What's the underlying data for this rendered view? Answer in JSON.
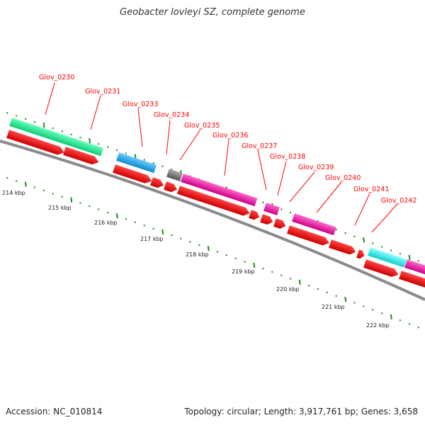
{
  "header": {
    "title": "Geobacter lovleyi SZ, complete genome"
  },
  "footer": {
    "accession": "Accession: NC_010814",
    "summary": "Topology: circular; Length: 3,917,761 bp; Genes: 3,658"
  },
  "scale_ticks": [
    "214 kbp",
    "215 kbp",
    "216 kbp",
    "217 kbp",
    "218 kbp",
    "219 kbp",
    "220 kbp",
    "221 kbp",
    "222 kbp"
  ],
  "genes": [
    {
      "id": "Glov_0230",
      "color": "#22ee99"
    },
    {
      "id": "Glov_0231",
      "color": "#22ee99"
    },
    {
      "id": "Glov_0233",
      "color": "#22aaee"
    },
    {
      "id": "Glov_0234",
      "color": "#777777"
    },
    {
      "id": "Glov_0235",
      "color": "#ee1199"
    },
    {
      "id": "Glov_0236",
      "color": "#ee1199"
    },
    {
      "id": "Glov_0237",
      "color": "#ee1199"
    },
    {
      "id": "Glov_0238",
      "color": "#ee1199"
    },
    {
      "id": "Glov_0239",
      "color": "#ee1199"
    },
    {
      "id": "Glov_0240",
      "color": "#ee1199"
    },
    {
      "id": "Glov_0241",
      "color": "#22eeee"
    },
    {
      "id": "Glov_0242",
      "color": "#ee1199"
    }
  ],
  "colors": {
    "cds_arrow": "#ee0000",
    "backbone": "#888888",
    "tick": "#228822",
    "label_line": "#ff0000"
  }
}
